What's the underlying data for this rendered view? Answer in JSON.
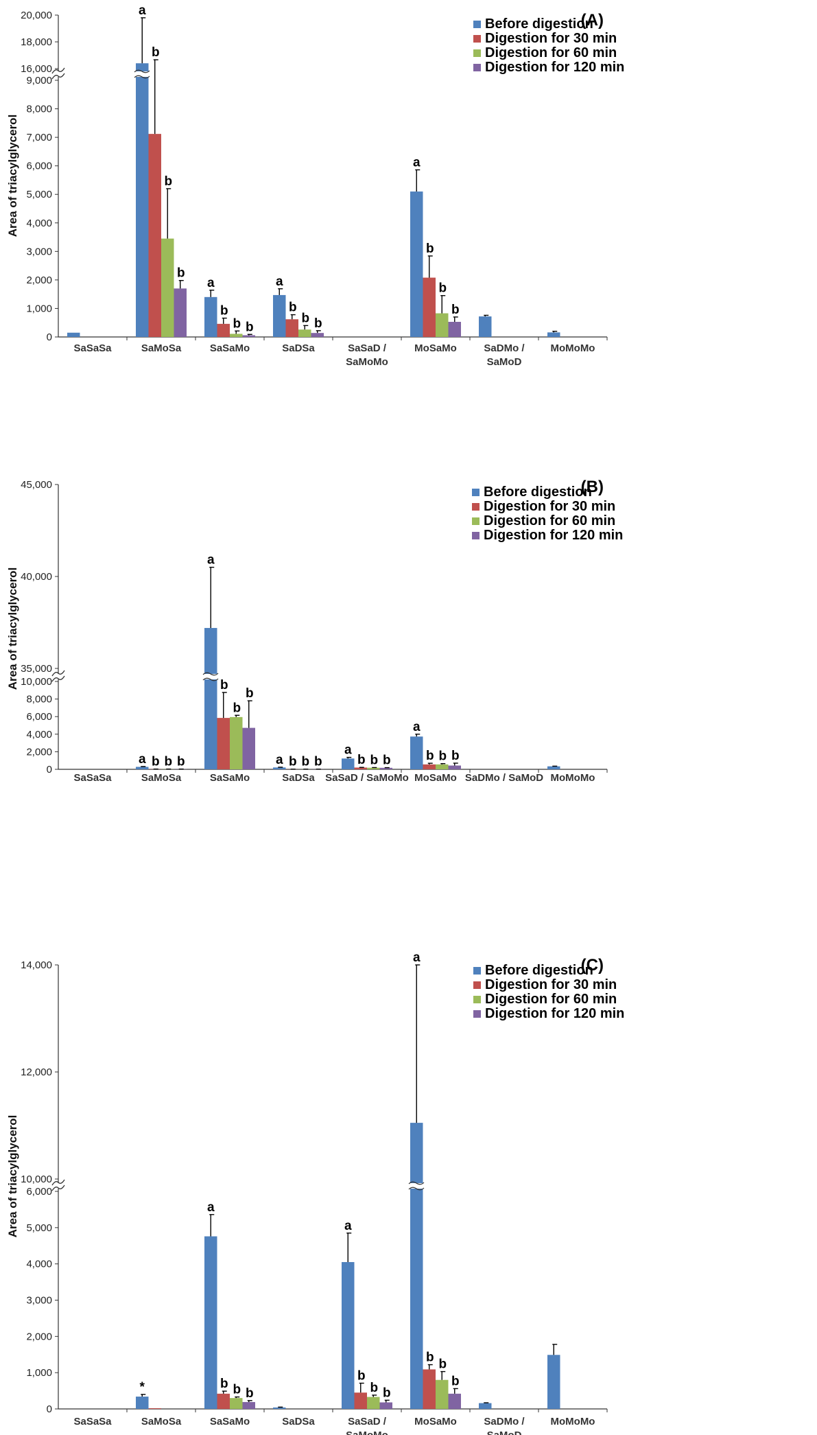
{
  "legend": [
    "Before digestion",
    "Digestion for 30 min",
    "Digestion for 60 min",
    "Digestion for 120 min"
  ],
  "colors": [
    "#4f81bd",
    "#c0504d",
    "#9bbb59",
    "#8064a2"
  ],
  "chart_data": [
    {
      "type": "bar",
      "panel_label": "(A)",
      "ylabel": "Area of triacylglycerol",
      "categories": [
        "SaSaSa",
        "SaMoSa",
        "SaSaMo",
        "SaDSa",
        "SaSaD /\nSaMoMo",
        "MoSaMo",
        "SaDMo /\nSaMoD",
        "MoMoMo"
      ],
      "y_ticks_lower": [
        0,
        1000,
        2000,
        3000,
        4000,
        5000,
        6000,
        7000,
        8000,
        9000
      ],
      "y_tick_labels_lower": [
        "0",
        "1,000",
        "2,000",
        "3,000",
        "4,000",
        "5,000",
        "6,000",
        "7,000",
        "8,000",
        "9,000"
      ],
      "y_ticks_upper": [
        16000,
        18000,
        20000
      ],
      "y_tick_labels_upper": [
        "16,000",
        "18,000",
        "20,000"
      ],
      "axis_break": [
        9800,
        16000
      ],
      "ylim": [
        0,
        20000
      ],
      "series": [
        {
          "name": "Before digestion",
          "values": [
            150,
            16400,
            1400,
            1470,
            0,
            5100,
            720,
            160
          ],
          "errors": [
            0,
            3400,
            240,
            220,
            0,
            760,
            40,
            40
          ],
          "labels": [
            "",
            "a",
            "a",
            "a",
            "",
            "a",
            "",
            ""
          ]
        },
        {
          "name": "Digestion for 30 min",
          "values": [
            0,
            7120,
            460,
            620,
            0,
            2080,
            0,
            0
          ],
          "errors": [
            0,
            2600,
            200,
            160,
            0,
            760,
            0,
            0
          ],
          "labels": [
            "",
            "b",
            "b",
            "b",
            "",
            "b",
            "",
            ""
          ]
        },
        {
          "name": "Digestion for 60 min",
          "values": [
            0,
            3450,
            110,
            260,
            0,
            830,
            0,
            0
          ],
          "errors": [
            0,
            1750,
            100,
            140,
            0,
            620,
            0,
            0
          ],
          "labels": [
            "",
            "b",
            "b",
            "b",
            "",
            "b",
            "",
            ""
          ]
        },
        {
          "name": "Digestion for 120 min",
          "values": [
            0,
            1700,
            60,
            140,
            0,
            530,
            0,
            0
          ],
          "errors": [
            0,
            280,
            30,
            80,
            0,
            170,
            0,
            0
          ],
          "labels": [
            "",
            "b",
            "b",
            "b",
            "",
            "b",
            "",
            ""
          ]
        }
      ]
    },
    {
      "type": "bar",
      "panel_label": "(B)",
      "ylabel": "Area of triacylglycerol",
      "categories": [
        "SaSaSa",
        "SaMoSa",
        "SaSaMo",
        "SaDSa",
        "SaSaD / SaMoMo",
        "MoSaMo",
        "SaDMo / SaMoD",
        "MoMoMo"
      ],
      "y_ticks_lower": [
        0,
        2000,
        4000,
        6000,
        8000,
        10000
      ],
      "y_tick_labels_lower": [
        "0",
        "2,000",
        "4,000",
        "6,000",
        "8,000",
        "10,000"
      ],
      "y_ticks_upper": [
        35000,
        40000,
        45000
      ],
      "y_tick_labels_upper": [
        "35,000",
        "40,000",
        "45,000"
      ],
      "axis_break": [
        10800,
        35000
      ],
      "ylim": [
        0,
        45000
      ],
      "series": [
        {
          "name": "Before digestion",
          "values": [
            0,
            280,
            37200,
            210,
            1230,
            3730,
            0,
            340
          ],
          "errors": [
            0,
            40,
            3300,
            30,
            130,
            270,
            0,
            20
          ],
          "labels": [
            "",
            "a",
            "a",
            "a",
            "a",
            "a",
            "",
            ""
          ]
        },
        {
          "name": "Digestion for 30 min",
          "values": [
            0,
            20,
            5850,
            10,
            200,
            560,
            0,
            0
          ],
          "errors": [
            0,
            10,
            2900,
            10,
            20,
            130,
            0,
            0
          ],
          "labels": [
            "",
            "b",
            "b",
            "b",
            "b",
            "b",
            "",
            ""
          ]
        },
        {
          "name": "Digestion for 60 min",
          "values": [
            0,
            20,
            5950,
            10,
            180,
            560,
            0,
            0
          ],
          "errors": [
            0,
            10,
            200,
            10,
            20,
            90,
            0,
            0
          ],
          "labels": [
            "",
            "b",
            "b",
            "b",
            "b",
            "b",
            "",
            ""
          ]
        },
        {
          "name": "Digestion for 120 min",
          "values": [
            0,
            20,
            4720,
            10,
            170,
            430,
            0,
            0
          ],
          "errors": [
            0,
            10,
            3080,
            10,
            20,
            270,
            0,
            0
          ],
          "labels": [
            "",
            "b",
            "b",
            "b",
            "b",
            "b",
            "",
            ""
          ]
        }
      ]
    },
    {
      "type": "bar",
      "panel_label": "(C)",
      "ylabel": "Area of triacylglycerol",
      "categories": [
        "SaSaSa",
        "SaMoSa",
        "SaSaMo",
        "SaDSa",
        "SaSaD /\nSaMoMo",
        "MoSaMo",
        "SaDMo /\nSaMoD",
        "MoMoMo"
      ],
      "y_ticks_lower": [
        0,
        1000,
        2000,
        3000,
        4000,
        5000,
        6000
      ],
      "y_tick_labels_lower": [
        "0",
        "1,000",
        "2,000",
        "3,000",
        "4,000",
        "5,000",
        "6,000"
      ],
      "y_ticks_upper": [
        10000,
        12000,
        14000
      ],
      "y_tick_labels_upper": [
        "10,000",
        "12,000",
        "14,000"
      ],
      "axis_break": [
        6450,
        10000
      ],
      "ylim": [
        0,
        14000
      ],
      "series": [
        {
          "name": "Before digestion",
          "values": [
            0,
            340,
            4760,
            40,
            4050,
            11050,
            160,
            1490
          ],
          "errors": [
            0,
            60,
            600,
            10,
            800,
            2950,
            10,
            290
          ],
          "labels": [
            "",
            "*",
            "a",
            "",
            "a",
            "a",
            "",
            ""
          ]
        },
        {
          "name": "Digestion for 30 min",
          "values": [
            0,
            20,
            420,
            0,
            450,
            1090,
            0,
            0
          ],
          "errors": [
            0,
            0,
            70,
            0,
            260,
            130,
            0,
            0
          ],
          "labels": [
            "",
            "",
            "b",
            "",
            "b",
            "b",
            "",
            ""
          ]
        },
        {
          "name": "Digestion for 60 min",
          "values": [
            0,
            0,
            300,
            0,
            330,
            800,
            0,
            0
          ],
          "errors": [
            0,
            0,
            30,
            0,
            50,
            230,
            0,
            0
          ],
          "labels": [
            "",
            "",
            "b",
            "",
            "b",
            "b",
            "",
            ""
          ]
        },
        {
          "name": "Digestion for 120 min",
          "values": [
            0,
            0,
            190,
            0,
            180,
            420,
            0,
            0
          ],
          "errors": [
            0,
            0,
            40,
            0,
            60,
            140,
            0,
            0
          ],
          "labels": [
            "",
            "",
            "b",
            "",
            "b",
            "b",
            "",
            ""
          ]
        }
      ]
    }
  ]
}
